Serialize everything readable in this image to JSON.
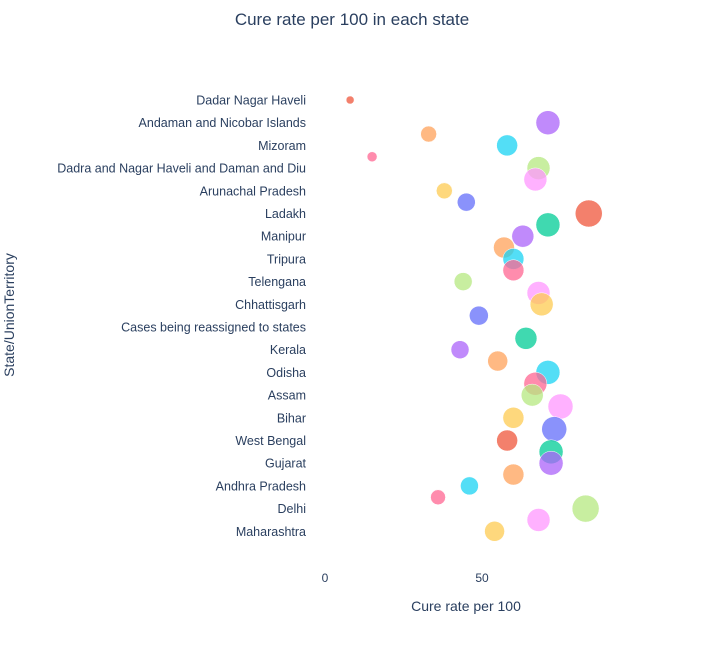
{
  "chart_data": {
    "type": "scatter",
    "title": "Cure rate per 100 in each state",
    "xlabel": "Cure rate per 100",
    "ylabel": "State/UnionTerritory",
    "xlim": [
      -5,
      95
    ],
    "xticks": [
      0,
      50
    ],
    "xtick_labels": [
      "0",
      "50"
    ],
    "categories": [
      "Maharashtra",
      "Delhi",
      "Andhra Pradesh",
      "Gujarat",
      "West Bengal",
      "Bihar",
      "Assam",
      "Odisha",
      "Kerala",
      "Cases being reassigned to states",
      "Chhattisgarh",
      "Telengana",
      "Tripura",
      "Manipur",
      "Ladakh",
      "Arunachal Pradesh",
      "Dadra and Nagar Haveli and Daman and Diu",
      "Mizoram",
      "Andaman and Nicobar Islands",
      "Dadar Nagar Haveli"
    ],
    "points": [
      {
        "x": 8,
        "y": 19.0,
        "size": 8,
        "color": "#EF553B"
      },
      {
        "x": 71,
        "y": 18.0,
        "size": 24,
        "color": "#AB63FA"
      },
      {
        "x": 33,
        "y": 17.5,
        "size": 16,
        "color": "#FFA15A"
      },
      {
        "x": 58,
        "y": 17.0,
        "size": 21,
        "color": "#19D3F3"
      },
      {
        "x": 15,
        "y": 16.5,
        "size": 10,
        "color": "#FF6692"
      },
      {
        "x": 68,
        "y": 16.0,
        "size": 23,
        "color": "#B6E880"
      },
      {
        "x": 67,
        "y": 15.5,
        "size": 23,
        "color": "#FF97FF"
      },
      {
        "x": 38,
        "y": 15.0,
        "size": 16,
        "color": "#FECB52"
      },
      {
        "x": 45,
        "y": 14.5,
        "size": 18,
        "color": "#636EFA"
      },
      {
        "x": 84,
        "y": 14.0,
        "size": 27,
        "color": "#EF553B"
      },
      {
        "x": 71,
        "y": 13.5,
        "size": 24,
        "color": "#00CC96"
      },
      {
        "x": 63,
        "y": 13.0,
        "size": 22,
        "color": "#AB63FA"
      },
      {
        "x": 57,
        "y": 12.5,
        "size": 21,
        "color": "#FFA15A"
      },
      {
        "x": 60,
        "y": 12.0,
        "size": 21,
        "color": "#19D3F3"
      },
      {
        "x": 60,
        "y": 11.5,
        "size": 21,
        "color": "#FF6692"
      },
      {
        "x": 44,
        "y": 11.0,
        "size": 18,
        "color": "#B6E880"
      },
      {
        "x": 68,
        "y": 10.5,
        "size": 23,
        "color": "#FF97FF"
      },
      {
        "x": 69,
        "y": 10.0,
        "size": 23,
        "color": "#FECB52"
      },
      {
        "x": 49,
        "y": 9.5,
        "size": 19,
        "color": "#636EFA"
      },
      {
        "x": 64,
        "y": 8.5,
        "size": 22,
        "color": "#00CC96"
      },
      {
        "x": 43,
        "y": 8.0,
        "size": 18,
        "color": "#AB63FA"
      },
      {
        "x": 55,
        "y": 7.5,
        "size": 20,
        "color": "#FFA15A"
      },
      {
        "x": 71,
        "y": 7.0,
        "size": 24,
        "color": "#19D3F3"
      },
      {
        "x": 67,
        "y": 6.5,
        "size": 23,
        "color": "#FF6692"
      },
      {
        "x": 66,
        "y": 6.0,
        "size": 22,
        "color": "#B6E880"
      },
      {
        "x": 75,
        "y": 5.5,
        "size": 25,
        "color": "#FF97FF"
      },
      {
        "x": 60,
        "y": 5.0,
        "size": 21,
        "color": "#FECB52"
      },
      {
        "x": 73,
        "y": 4.5,
        "size": 25,
        "color": "#636EFA"
      },
      {
        "x": 58,
        "y": 4.0,
        "size": 21,
        "color": "#EF553B"
      },
      {
        "x": 72,
        "y": 3.5,
        "size": 24,
        "color": "#00CC96"
      },
      {
        "x": 72,
        "y": 3.0,
        "size": 24,
        "color": "#AB63FA"
      },
      {
        "x": 60,
        "y": 2.5,
        "size": 21,
        "color": "#FFA15A"
      },
      {
        "x": 46,
        "y": 2.0,
        "size": 18,
        "color": "#19D3F3"
      },
      {
        "x": 36,
        "y": 1.5,
        "size": 15,
        "color": "#FF6692"
      },
      {
        "x": 83,
        "y": 1.0,
        "size": 27,
        "color": "#B6E880"
      },
      {
        "x": 68,
        "y": 0.5,
        "size": 23,
        "color": "#FF97FF"
      },
      {
        "x": 54,
        "y": 0.0,
        "size": 20,
        "color": "#FECB52"
      }
    ],
    "marker_opacity": 0.75,
    "grid": false,
    "legend": "none"
  }
}
